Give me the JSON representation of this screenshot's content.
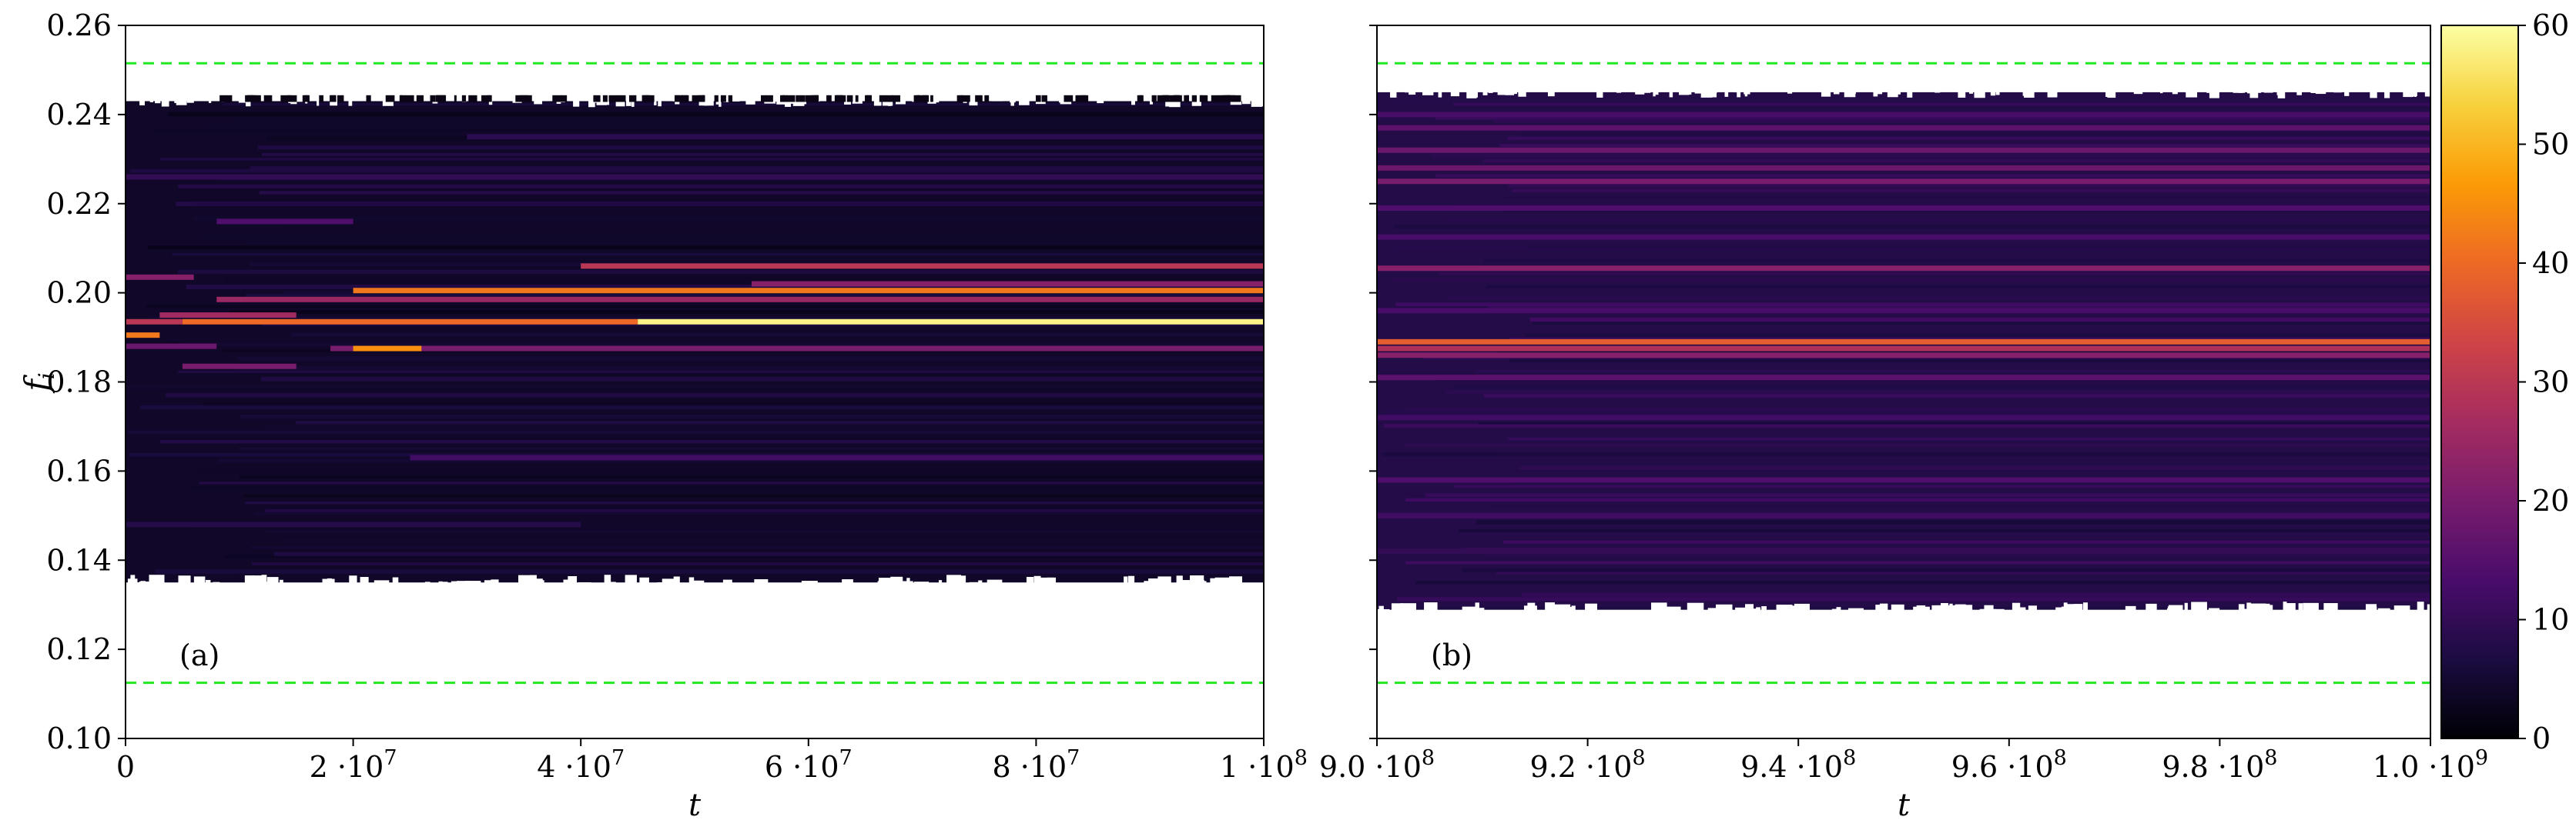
{
  "chart_data": [
    {
      "type": "heatmap",
      "panel_label": "(a)",
      "xlabel": "t",
      "ylabel_main": "f",
      "ylabel_sub": "i",
      "xlim": [
        0,
        100000000
      ],
      "ylim": [
        0.1,
        0.26
      ],
      "x_ticks": [
        {
          "value": 0,
          "label": "0"
        },
        {
          "value": 20000000,
          "mantissa": "2",
          "base": "·10",
          "exp": "7"
        },
        {
          "value": 40000000,
          "mantissa": "4",
          "base": "·10",
          "exp": "7"
        },
        {
          "value": 60000000,
          "mantissa": "6",
          "base": "·10",
          "exp": "7"
        },
        {
          "value": 80000000,
          "mantissa": "8",
          "base": "·10",
          "exp": "7"
        },
        {
          "value": 100000000,
          "mantissa": "1",
          "base": "·10",
          "exp": "8"
        }
      ],
      "y_ticks": [
        {
          "value": 0.1,
          "label": "0.10"
        },
        {
          "value": 0.12,
          "label": "0.12"
        },
        {
          "value": 0.14,
          "label": "0.14"
        },
        {
          "value": 0.16,
          "label": "0.16"
        },
        {
          "value": 0.18,
          "label": "0.18"
        },
        {
          "value": 0.2,
          "label": "0.20"
        },
        {
          "value": 0.22,
          "label": "0.22"
        },
        {
          "value": 0.24,
          "label": "0.24"
        },
        {
          "value": 0.26,
          "label": "0.26"
        }
      ],
      "reference_lines": [
        0.2515,
        0.1125
      ],
      "reference_line_color": "#22e822",
      "occupied_range": [
        0.135,
        0.243
      ],
      "sparse_band": [
        0.243,
        0.2445
      ],
      "background_level": 4,
      "ridges": [
        {
          "f": 0.1935,
          "t_start": 45000000,
          "t_end": 100000000,
          "level": 58
        },
        {
          "f": 0.1935,
          "t_start": 5000000,
          "t_end": 45000000,
          "level": 40
        },
        {
          "f": 0.1935,
          "t_start": 0,
          "t_end": 5000000,
          "level": 30
        },
        {
          "f": 0.2005,
          "t_start": 20000000,
          "t_end": 100000000,
          "level": 42
        },
        {
          "f": 0.206,
          "t_start": 40000000,
          "t_end": 100000000,
          "level": 30
        },
        {
          "f": 0.1985,
          "t_start": 8000000,
          "t_end": 100000000,
          "level": 25
        },
        {
          "f": 0.202,
          "t_start": 55000000,
          "t_end": 100000000,
          "level": 22
        },
        {
          "f": 0.1875,
          "t_start": 18000000,
          "t_end": 100000000,
          "level": 20
        },
        {
          "f": 0.1875,
          "t_start": 20000000,
          "t_end": 26000000,
          "level": 45
        },
        {
          "f": 0.1905,
          "t_start": 0,
          "t_end": 3000000,
          "level": 42
        },
        {
          "f": 0.2035,
          "t_start": 0,
          "t_end": 6000000,
          "level": 22
        },
        {
          "f": 0.195,
          "t_start": 3000000,
          "t_end": 15000000,
          "level": 26
        },
        {
          "f": 0.188,
          "t_start": 0,
          "t_end": 8000000,
          "level": 18
        },
        {
          "f": 0.1835,
          "t_start": 5000000,
          "t_end": 15000000,
          "level": 20
        },
        {
          "f": 0.216,
          "t_start": 8000000,
          "t_end": 20000000,
          "level": 14
        },
        {
          "f": 0.163,
          "t_start": 25000000,
          "t_end": 100000000,
          "level": 12
        },
        {
          "f": 0.226,
          "t_start": 0,
          "t_end": 100000000,
          "level": 10
        },
        {
          "f": 0.235,
          "t_start": 30000000,
          "t_end": 100000000,
          "level": 9
        },
        {
          "f": 0.148,
          "t_start": 0,
          "t_end": 40000000,
          "level": 8
        }
      ]
    },
    {
      "type": "heatmap",
      "panel_label": "(b)",
      "xlabel": "t",
      "xlim": [
        900000000,
        1000000000
      ],
      "ylim": [
        0.1,
        0.26
      ],
      "x_ticks": [
        {
          "value": 900000000,
          "mantissa": "9.0",
          "base": "·10",
          "exp": "8"
        },
        {
          "value": 920000000,
          "mantissa": "9.2",
          "base": "·10",
          "exp": "8"
        },
        {
          "value": 940000000,
          "mantissa": "9.4",
          "base": "·10",
          "exp": "8"
        },
        {
          "value": 960000000,
          "mantissa": "9.6",
          "base": "·10",
          "exp": "8"
        },
        {
          "value": 980000000,
          "mantissa": "9.8",
          "base": "·10",
          "exp": "8"
        },
        {
          "value": 1000000000,
          "mantissa": "1.0",
          "base": "·10",
          "exp": "9"
        }
      ],
      "y_ticks": [
        0.1,
        0.12,
        0.14,
        0.16,
        0.18,
        0.2,
        0.22,
        0.24,
        0.26
      ],
      "reference_lines": [
        0.2515,
        0.1125
      ],
      "reference_line_color": "#22e822",
      "occupied_range": [
        0.129,
        0.245
      ],
      "background_level": 8,
      "ridges": [
        {
          "f": 0.189,
          "t_start": 900000000,
          "t_end": 1000000000,
          "level": 38
        },
        {
          "f": 0.1875,
          "t_start": 900000000,
          "t_end": 1000000000,
          "level": 28
        },
        {
          "f": 0.186,
          "t_start": 900000000,
          "t_end": 1000000000,
          "level": 22
        },
        {
          "f": 0.2055,
          "t_start": 900000000,
          "t_end": 1000000000,
          "level": 22
        },
        {
          "f": 0.225,
          "t_start": 900000000,
          "t_end": 1000000000,
          "level": 20
        },
        {
          "f": 0.228,
          "t_start": 900000000,
          "t_end": 1000000000,
          "level": 18
        },
        {
          "f": 0.232,
          "t_start": 900000000,
          "t_end": 1000000000,
          "level": 18
        },
        {
          "f": 0.237,
          "t_start": 900000000,
          "t_end": 1000000000,
          "level": 16
        },
        {
          "f": 0.24,
          "t_start": 900000000,
          "t_end": 1000000000,
          "level": 13
        },
        {
          "f": 0.219,
          "t_start": 900000000,
          "t_end": 1000000000,
          "level": 14
        },
        {
          "f": 0.2125,
          "t_start": 900000000,
          "t_end": 1000000000,
          "level": 13
        },
        {
          "f": 0.196,
          "t_start": 900000000,
          "t_end": 1000000000,
          "level": 13
        },
        {
          "f": 0.181,
          "t_start": 900000000,
          "t_end": 1000000000,
          "level": 16
        },
        {
          "f": 0.172,
          "t_start": 900000000,
          "t_end": 1000000000,
          "level": 12
        },
        {
          "f": 0.158,
          "t_start": 900000000,
          "t_end": 1000000000,
          "level": 14
        },
        {
          "f": 0.15,
          "t_start": 900000000,
          "t_end": 1000000000,
          "level": 12
        },
        {
          "f": 0.142,
          "t_start": 900000000,
          "t_end": 1000000000,
          "level": 10
        }
      ]
    }
  ],
  "colorbar": {
    "colormap": "inferno",
    "range": [
      0,
      60
    ],
    "ticks": [
      {
        "value": 0,
        "label": "0"
      },
      {
        "value": 10,
        "label": "10"
      },
      {
        "value": 20,
        "label": "20"
      },
      {
        "value": 30,
        "label": "30"
      },
      {
        "value": 40,
        "label": "40"
      },
      {
        "value": 50,
        "label": "50"
      },
      {
        "value": 60,
        "label": "60"
      }
    ],
    "stops": [
      "#000004",
      "#1b0c41",
      "#4a0c6b",
      "#781c6d",
      "#a52c60",
      "#cf4446",
      "#ed6925",
      "#fb9b06",
      "#f7d13d",
      "#fcffa4"
    ]
  }
}
